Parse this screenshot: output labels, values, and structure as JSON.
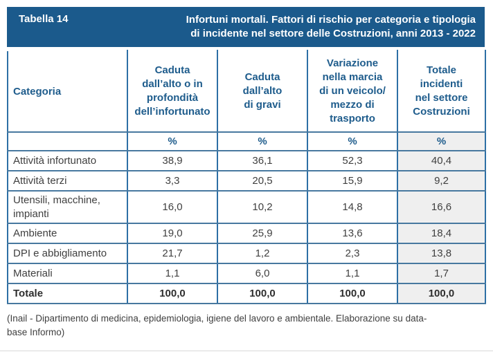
{
  "colors": {
    "band_bg": "#1B5A8C",
    "band_text": "#FFFFFF",
    "header_text": "#1E5C8C",
    "border_vertical": "#2D6FA5",
    "border_horizontal": "#47789F",
    "body_text": "#3F3F3F",
    "total_column_bg": "#EFEFEF"
  },
  "band": {
    "label": "Tabella 14",
    "title_line1": "Infortuni mortali. Fattori di rischio per categoria e tipologia",
    "title_line2": "di incidente nel settore delle Costruzioni, anni 2013 - 2022"
  },
  "table": {
    "category_header": "Categoria",
    "columns": [
      {
        "label": "Caduta dall’alto o in profondità dell’infortunato",
        "lines": [
          "Caduta",
          "dall’alto o in",
          "profondità",
          "dell’infortunato"
        ]
      },
      {
        "label": "Caduta dall’alto di gravi",
        "lines": [
          "Caduta",
          "dall’alto",
          "di gravi"
        ]
      },
      {
        "label": "Variazione nella marcia di un veicolo/mezzo di trasporto",
        "lines": [
          "Variazione",
          "nella marcia",
          "di un veicolo/",
          "mezzo di",
          "trasporto"
        ]
      },
      {
        "label": "Totale incidenti nel settore Costruzioni",
        "lines": [
          "Totale",
          "incidenti",
          "nel settore",
          "Costruzioni"
        ]
      }
    ],
    "unit_row": [
      "%",
      "%",
      "%",
      "%"
    ],
    "rows": [
      {
        "label": "Attività infortunato",
        "values": [
          "38,9",
          "36,1",
          "52,3",
          "40,4"
        ]
      },
      {
        "label": "Attività terzi",
        "values": [
          "3,3",
          "20,5",
          "15,9",
          "9,2"
        ]
      },
      {
        "label": "Utensili, macchine, impianti",
        "values": [
          "16,0",
          "10,2",
          "14,8",
          "16,6"
        ]
      },
      {
        "label": "Ambiente",
        "values": [
          "19,0",
          "25,9",
          "13,6",
          "18,4"
        ]
      },
      {
        "label": "DPI e abbigliamento",
        "values": [
          "21,7",
          "1,2",
          "2,3",
          "13,8"
        ]
      },
      {
        "label": "Materiali",
        "values": [
          "1,1",
          "6,0",
          "1,1",
          "1,7"
        ]
      },
      {
        "label": "Totale",
        "values": [
          "100,0",
          "100,0",
          "100,0",
          "100,0"
        ]
      }
    ]
  },
  "source_note": {
    "full": "(Inail - Dipartimento di medicina, epidemiologia, igiene del lavoro e ambientale. Elaborazione su data-base Informo)",
    "line1": "(Inail - Dipartimento di medicina, epidemiologia, igiene del lavoro e ambientale. Elaborazione su data-",
    "line2": "base Informo)"
  },
  "chart_data": {
    "type": "table",
    "title": "Tabella 14 — Infortuni mortali. Fattori di rischio per categoria e tipologia di incidente nel settore delle Costruzioni, anni 2013 - 2022",
    "columns": [
      "Categoria",
      "Caduta dall’alto o in profondità dell’infortunato (%)",
      "Caduta dall’alto di gravi (%)",
      "Variazione nella marcia di un veicolo/mezzo di trasporto (%)",
      "Totale incidenti nel settore Costruzioni (%)"
    ],
    "rows": [
      [
        "Attività infortunato",
        38.9,
        36.1,
        52.3,
        40.4
      ],
      [
        "Attività terzi",
        3.3,
        20.5,
        15.9,
        9.2
      ],
      [
        "Utensili, macchine, impianti",
        16.0,
        10.2,
        14.8,
        16.6
      ],
      [
        "Ambiente",
        19.0,
        25.9,
        13.6,
        18.4
      ],
      [
        "DPI e abbigliamento",
        21.7,
        1.2,
        2.3,
        13.8
      ],
      [
        "Materiali",
        1.1,
        6.0,
        1.1,
        1.7
      ],
      [
        "Totale",
        100.0,
        100.0,
        100.0,
        100.0
      ]
    ],
    "source": "(Inail - Dipartimento di medicina, epidemiologia, igiene del lavoro e ambientale. Elaborazione su data-base Informo)"
  }
}
